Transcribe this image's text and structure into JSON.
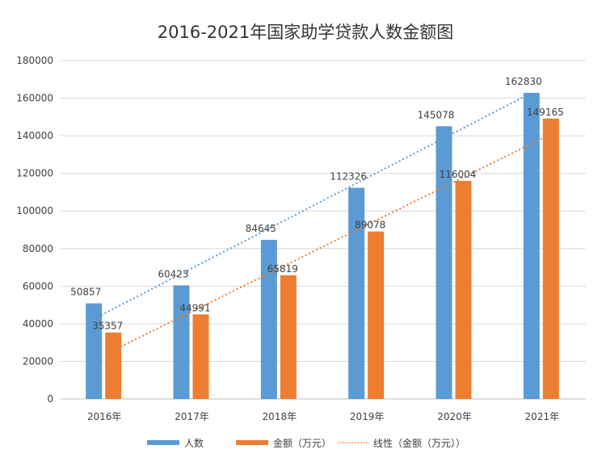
{
  "chart_data": {
    "type": "bar",
    "title": "2016-2021年国家助学贷款人数金额图",
    "categories": [
      "2016年",
      "2017年",
      "2018年",
      "2019年",
      "2020年",
      "2021年"
    ],
    "series": [
      {
        "name": "人数",
        "color": "#5B9BD5",
        "values": [
          50857,
          60423,
          84645,
          112326,
          145078,
          162830
        ]
      },
      {
        "name": "金额（万元）",
        "color": "#ED7D31",
        "values": [
          35357,
          44991,
          65819,
          89078,
          116004,
          149165
        ]
      }
    ],
    "trendlines": [
      {
        "series": "人数",
        "type": "linear",
        "color": "#5B9BD5",
        "in_legend": false
      },
      {
        "series": "金额（万元）",
        "type": "linear",
        "color": "#ED7D31",
        "in_legend": true,
        "name": "线性（金额（万元））"
      }
    ],
    "ylim": [
      0,
      180000
    ],
    "yticks": [
      0,
      20000,
      40000,
      60000,
      80000,
      100000,
      120000,
      140000,
      160000,
      180000
    ],
    "grid": true,
    "legend": "bottom",
    "xlabel": "",
    "ylabel": ""
  }
}
